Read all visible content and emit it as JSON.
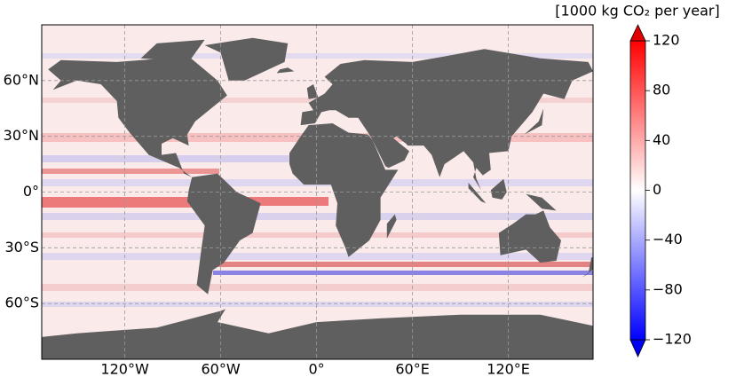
{
  "map": {
    "xlim": [
      -172,
      173
    ],
    "ylim": [
      -90,
      90
    ],
    "xticks": [
      {
        "value": -120,
        "label": "120°W"
      },
      {
        "value": -60,
        "label": "60°W"
      },
      {
        "value": 0,
        "label": "0°"
      },
      {
        "value": 60,
        "label": "60°E"
      },
      {
        "value": 120,
        "label": "120°E"
      }
    ],
    "yticks": [
      {
        "value": 60,
        "label": "60°N"
      },
      {
        "value": 30,
        "label": "30°N"
      },
      {
        "value": 0,
        "label": "0°"
      },
      {
        "value": -30,
        "label": "30°S"
      },
      {
        "value": -60,
        "label": "60°S"
      }
    ]
  },
  "colorbar": {
    "label": "[1000 kg CO₂ per year]",
    "lim": [
      -120,
      120
    ],
    "ticks": [
      {
        "value": -120,
        "label": "−120"
      },
      {
        "value": -80,
        "label": "−80"
      },
      {
        "value": -40,
        "label": "−40"
      },
      0,
      40,
      80,
      120
    ]
  }
}
